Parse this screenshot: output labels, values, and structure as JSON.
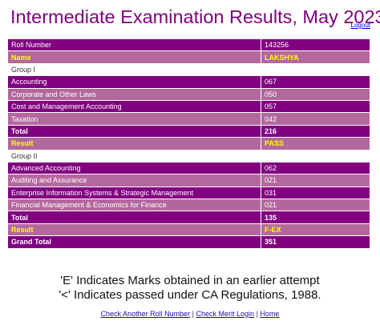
{
  "header": {
    "title": "Intermediate Examination Results, May 2023",
    "logout": "Logout"
  },
  "rows": [
    {
      "label": "Roll Number",
      "value": "143256"
    },
    {
      "label": "Name",
      "value": "LAKSHYA"
    },
    {
      "label": "Group I",
      "value": ""
    },
    {
      "label": "Accounting",
      "value": "067"
    },
    {
      "label": "Corporate and Other Laws",
      "value": "050"
    },
    {
      "label": "Cost and Management Accounting",
      "value": "057"
    },
    {
      "label": "Taxation",
      "value": "042"
    },
    {
      "label": "Total",
      "value": "216"
    },
    {
      "label": "Result",
      "value": "PASS"
    },
    {
      "label": "Group II",
      "value": ""
    },
    {
      "label": "Advanced Accounting",
      "value": "062"
    },
    {
      "label": "Auditing and Assurance",
      "value": "021"
    },
    {
      "label": "Enterprise Information Systems & Strategic Management",
      "value": "031"
    },
    {
      "label": "Financial Management & Economics for Finance",
      "value": "021"
    },
    {
      "label": "Total",
      "value": "135"
    },
    {
      "label": "Result",
      "value": "F-EX"
    },
    {
      "label": "Grand Total",
      "value": "351"
    }
  ],
  "notes": {
    "line1": "'E' Indicates Marks obtained in an earlier attempt",
    "line2": "'<' Indicates passed under CA Regulations, 1988."
  },
  "footer": {
    "check_another": "Check Another Roll Number",
    "separator": "|",
    "check_merit": "Check Merit Login",
    "home": "Home"
  },
  "colors": {
    "purple": "#800080",
    "light_purple": "#b3689d",
    "highlight": "#ffff00"
  }
}
